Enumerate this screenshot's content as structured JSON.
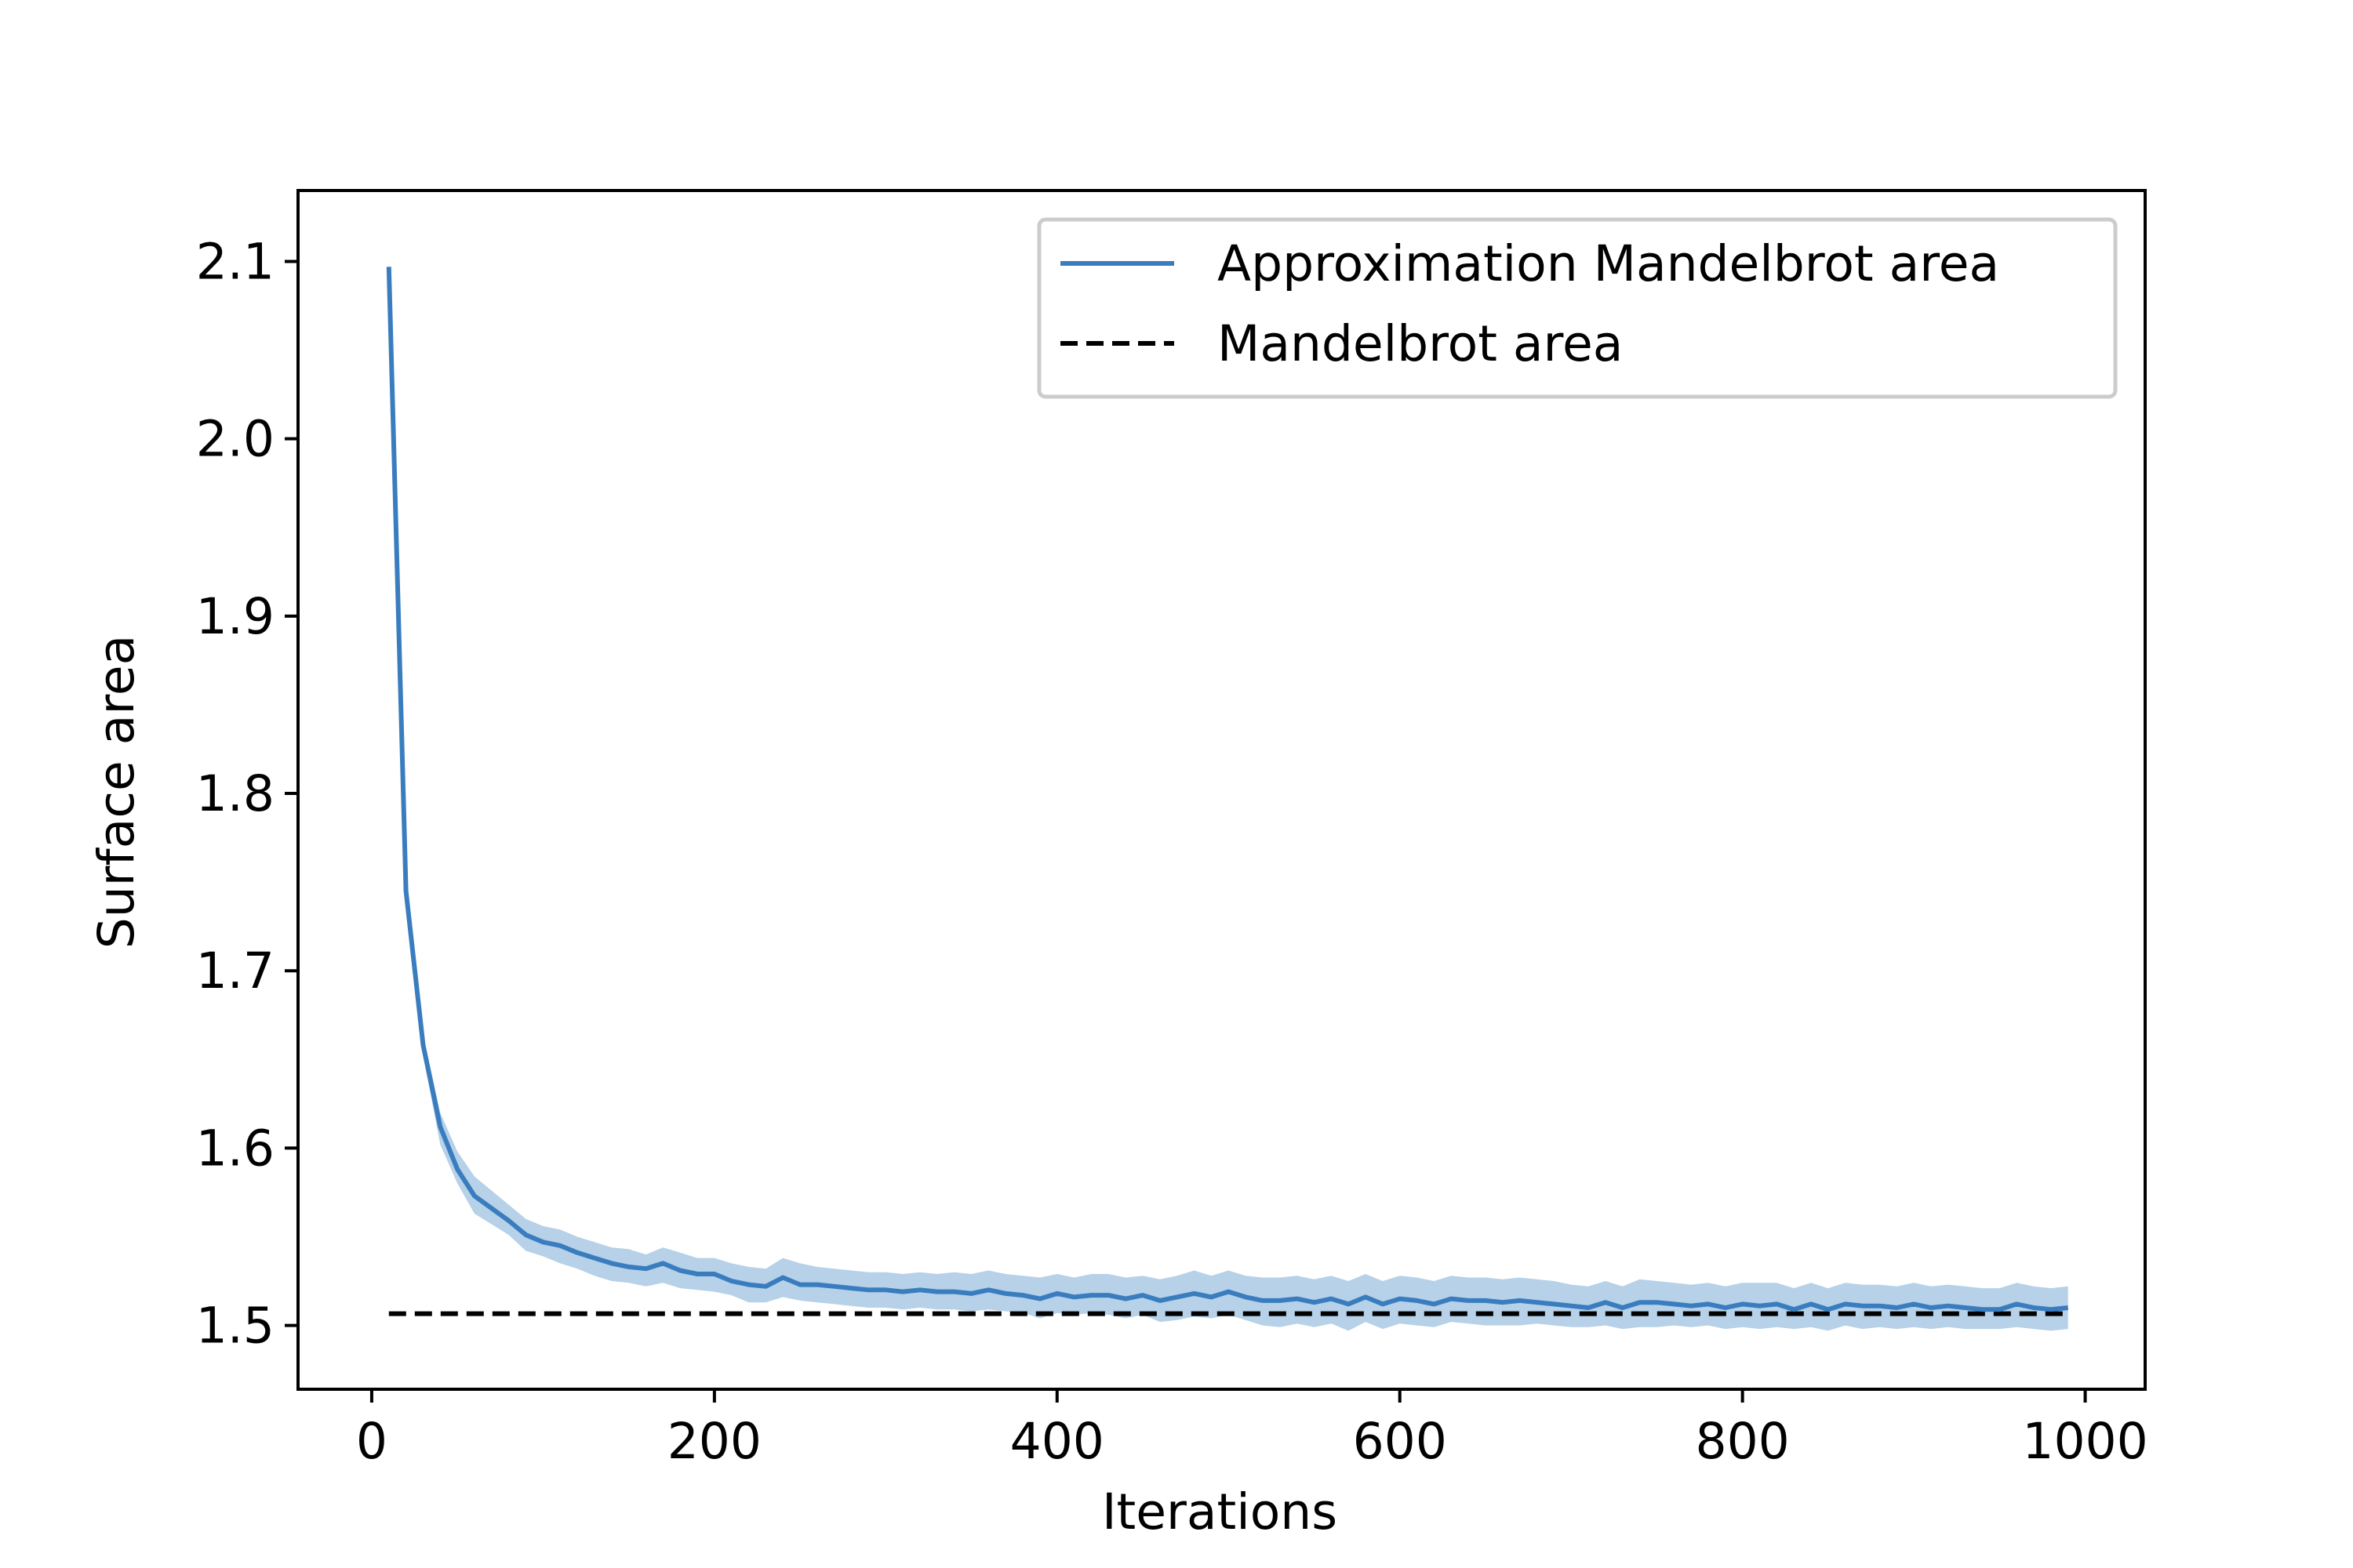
{
  "chart_data": {
    "type": "line",
    "xlabel": "Iterations",
    "ylabel": "Surface area",
    "xlim": [
      -43,
      1035
    ],
    "ylim": [
      1.464,
      2.14
    ],
    "xticks": [
      0,
      200,
      400,
      600,
      800,
      1000
    ],
    "yticks": [
      1.5,
      1.6,
      1.7,
      1.8,
      1.9,
      2.0,
      2.1
    ],
    "ytick_labels": [
      "1.5",
      "1.6",
      "1.7",
      "1.8",
      "1.9",
      "2.0",
      "2.1"
    ],
    "grid": false,
    "legend_position": "top-right",
    "colors": {
      "approximation": "#3a7dbf",
      "band": "#b6d1e8",
      "reference": "#000000"
    },
    "x": [
      10,
      20,
      30,
      40,
      50,
      60,
      70,
      80,
      90,
      100,
      110,
      120,
      130,
      140,
      150,
      160,
      170,
      180,
      190,
      200,
      210,
      220,
      230,
      240,
      250,
      260,
      270,
      280,
      290,
      300,
      310,
      320,
      330,
      340,
      350,
      360,
      370,
      380,
      390,
      400,
      410,
      420,
      430,
      440,
      450,
      460,
      470,
      480,
      490,
      500,
      510,
      520,
      530,
      540,
      550,
      560,
      570,
      580,
      590,
      600,
      610,
      620,
      630,
      640,
      650,
      660,
      670,
      680,
      690,
      700,
      710,
      720,
      730,
      740,
      750,
      760,
      770,
      780,
      790,
      800,
      810,
      820,
      830,
      840,
      850,
      860,
      870,
      880,
      890,
      900,
      910,
      920,
      930,
      940,
      950,
      960,
      970,
      980,
      990
    ],
    "series": [
      {
        "name": "Approximation Mandelbrot area",
        "style": "solid",
        "values": [
          2.097,
          1.745,
          1.658,
          1.612,
          1.588,
          1.573,
          1.566,
          1.559,
          1.551,
          1.547,
          1.545,
          1.541,
          1.538,
          1.535,
          1.533,
          1.532,
          1.535,
          1.531,
          1.529,
          1.529,
          1.525,
          1.523,
          1.522,
          1.527,
          1.523,
          1.523,
          1.522,
          1.521,
          1.52,
          1.52,
          1.519,
          1.52,
          1.519,
          1.519,
          1.518,
          1.52,
          1.518,
          1.517,
          1.515,
          1.518,
          1.516,
          1.517,
          1.517,
          1.515,
          1.517,
          1.514,
          1.516,
          1.518,
          1.516,
          1.519,
          1.516,
          1.514,
          1.514,
          1.515,
          1.513,
          1.515,
          1.512,
          1.516,
          1.512,
          1.515,
          1.514,
          1.512,
          1.515,
          1.514,
          1.514,
          1.513,
          1.514,
          1.513,
          1.512,
          1.511,
          1.51,
          1.513,
          1.51,
          1.513,
          1.513,
          1.512,
          1.511,
          1.512,
          1.51,
          1.512,
          1.511,
          1.512,
          1.509,
          1.512,
          1.509,
          1.512,
          1.511,
          1.511,
          1.51,
          1.512,
          1.51,
          1.511,
          1.51,
          1.509,
          1.509,
          1.512,
          1.51,
          1.509,
          1.51
        ],
        "lower": [
          2.093,
          1.742,
          1.652,
          1.602,
          1.58,
          1.563,
          1.557,
          1.551,
          1.542,
          1.539,
          1.535,
          1.532,
          1.528,
          1.525,
          1.524,
          1.522,
          1.524,
          1.521,
          1.52,
          1.519,
          1.517,
          1.513,
          1.513,
          1.516,
          1.514,
          1.513,
          1.512,
          1.511,
          1.51,
          1.51,
          1.509,
          1.51,
          1.509,
          1.509,
          1.508,
          1.509,
          1.508,
          1.507,
          1.504,
          1.507,
          1.506,
          1.507,
          1.506,
          1.504,
          1.506,
          1.502,
          1.503,
          1.505,
          1.504,
          1.506,
          1.503,
          1.5,
          1.499,
          1.501,
          1.499,
          1.501,
          1.497,
          1.502,
          1.498,
          1.501,
          1.5,
          1.499,
          1.502,
          1.501,
          1.5,
          1.5,
          1.5,
          1.501,
          1.5,
          1.499,
          1.499,
          1.5,
          1.498,
          1.499,
          1.499,
          1.5,
          1.499,
          1.5,
          1.498,
          1.499,
          1.498,
          1.499,
          1.498,
          1.499,
          1.497,
          1.5,
          1.498,
          1.499,
          1.498,
          1.499,
          1.498,
          1.499,
          1.498,
          1.498,
          1.498,
          1.499,
          1.498,
          1.497,
          1.498
        ],
        "upper": [
          2.1,
          1.748,
          1.664,
          1.62,
          1.598,
          1.584,
          1.576,
          1.568,
          1.56,
          1.556,
          1.554,
          1.55,
          1.547,
          1.544,
          1.543,
          1.54,
          1.544,
          1.541,
          1.538,
          1.538,
          1.535,
          1.533,
          1.532,
          1.538,
          1.535,
          1.533,
          1.532,
          1.531,
          1.53,
          1.53,
          1.529,
          1.53,
          1.529,
          1.53,
          1.529,
          1.531,
          1.529,
          1.528,
          1.527,
          1.529,
          1.527,
          1.529,
          1.529,
          1.527,
          1.528,
          1.526,
          1.528,
          1.531,
          1.528,
          1.531,
          1.528,
          1.527,
          1.527,
          1.528,
          1.526,
          1.528,
          1.525,
          1.529,
          1.525,
          1.528,
          1.527,
          1.525,
          1.528,
          1.527,
          1.527,
          1.526,
          1.527,
          1.526,
          1.525,
          1.523,
          1.522,
          1.525,
          1.522,
          1.526,
          1.525,
          1.524,
          1.523,
          1.524,
          1.522,
          1.524,
          1.524,
          1.524,
          1.521,
          1.524,
          1.521,
          1.524,
          1.523,
          1.523,
          1.522,
          1.524,
          1.522,
          1.523,
          1.522,
          1.521,
          1.521,
          1.524,
          1.522,
          1.521,
          1.522
        ]
      },
      {
        "name": "Mandelbrot area",
        "style": "dashed",
        "x": [
          10,
          990
        ],
        "values": [
          1.5066,
          1.5066
        ]
      }
    ]
  }
}
